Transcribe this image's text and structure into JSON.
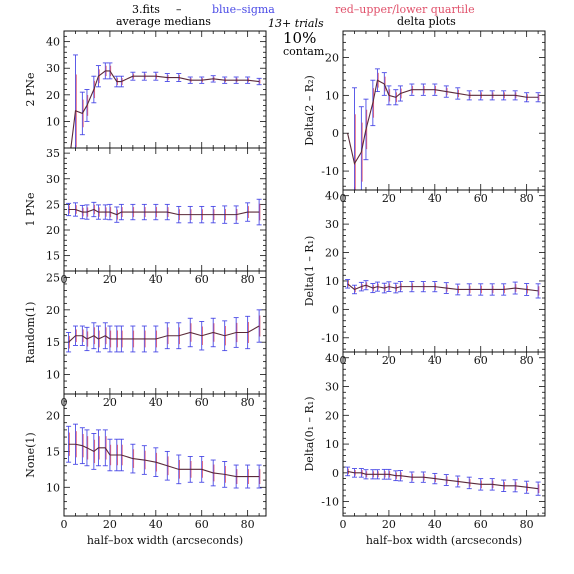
{
  "header": {
    "file_label": "3.fits",
    "dash": "–",
    "legend_sigma": "blue–sigma",
    "legend_quartile": "red–upper/lower quartile",
    "trials": "13+ trials",
    "contam_pct": "10%",
    "contam_word": "contam.",
    "left_column_title": "average medians",
    "right_column_title": "delta plots"
  },
  "colors": {
    "sigma": "#4a4ae6",
    "quartile": "#e0506a",
    "median_line": "#5a2a3a",
    "axes": "#111111"
  },
  "chart_data": [
    {
      "type": "line",
      "ylabel": "2 PNe",
      "xlabel": "",
      "xlim": [
        0,
        88
      ],
      "ylim": [
        0,
        44
      ],
      "xticks": [
        0,
        20,
        40,
        60,
        80
      ],
      "yticks": [
        10,
        20,
        30,
        40
      ],
      "x": [
        3,
        5,
        8,
        10,
        13,
        15,
        18,
        20,
        23,
        25,
        30,
        35,
        40,
        45,
        50,
        55,
        60,
        65,
        70,
        75,
        80,
        85
      ],
      "median": [
        0,
        14,
        13,
        16,
        22,
        27,
        29,
        29,
        25,
        25,
        27,
        27,
        27,
        26.5,
        26.5,
        25.5,
        25.5,
        26,
        25.5,
        25.5,
        25.5,
        25
      ],
      "err": [
        0,
        21,
        8,
        6,
        5,
        4,
        3,
        3,
        2,
        2,
        1.5,
        1.5,
        1.5,
        1.5,
        1.5,
        1.2,
        1.2,
        1.2,
        1.2,
        1.2,
        1.2,
        1.2
      ]
    },
    {
      "type": "line",
      "ylabel": "1 PNe",
      "xlabel": "",
      "xlim": [
        0,
        88
      ],
      "ylim": [
        12,
        36
      ],
      "xticks": [
        0,
        20,
        40,
        60,
        80
      ],
      "xtick_labels": [
        "0",
        "20",
        "40",
        "60",
        "80"
      ],
      "yticks": [
        15,
        20,
        25,
        30,
        35
      ],
      "x": [
        2,
        5,
        8,
        10,
        13,
        15,
        18,
        20,
        23,
        25,
        30,
        35,
        40,
        45,
        50,
        55,
        60,
        65,
        70,
        75,
        80,
        85
      ],
      "median": [
        24,
        24,
        23.5,
        23.5,
        24,
        23.5,
        23.5,
        23.5,
        23,
        23.5,
        23.5,
        23.5,
        23.5,
        23.5,
        23,
        23,
        23,
        23,
        23,
        23,
        23.5,
        23.5
      ],
      "err": [
        1.2,
        1.3,
        1.3,
        1.4,
        1.4,
        1.4,
        1.4,
        1.5,
        1.5,
        1.5,
        1.5,
        1.5,
        1.5,
        1.5,
        1.6,
        1.6,
        1.6,
        1.6,
        1.7,
        1.7,
        1.8,
        2.5
      ]
    },
    {
      "type": "line",
      "ylabel": "Random(1)",
      "xlabel": "",
      "xlim": [
        0,
        88
      ],
      "ylim": [
        7,
        26
      ],
      "xticks": [
        0,
        20,
        40,
        60,
        80
      ],
      "xtick_labels": [
        "0",
        "20",
        "40",
        "60",
        "80"
      ],
      "yticks": [
        10,
        15,
        20,
        25
      ],
      "x": [
        2,
        5,
        8,
        10,
        13,
        15,
        18,
        20,
        23,
        25,
        30,
        35,
        40,
        45,
        50,
        55,
        60,
        65,
        70,
        75,
        80,
        85
      ],
      "median": [
        15,
        16,
        16,
        15.5,
        16,
        15.5,
        16,
        15.5,
        15.5,
        15.5,
        15.5,
        15.5,
        15.5,
        16,
        16,
        16.5,
        16,
        16.5,
        16,
        16.5,
        16.5,
        17.5
      ],
      "err": [
        1.5,
        1.5,
        1.5,
        1.8,
        2,
        2,
        2,
        2,
        2,
        2,
        2,
        2,
        2,
        2,
        2,
        2.2,
        2.2,
        2.2,
        2.3,
        2.3,
        2.5,
        2.5
      ]
    },
    {
      "type": "line",
      "ylabel": "None(1)",
      "xlabel": "half–box width (arcseconds)",
      "xlim": [
        0,
        88
      ],
      "ylim": [
        6,
        23
      ],
      "xticks": [
        0,
        20,
        40,
        60,
        80
      ],
      "xtick_labels": [
        "0",
        "20",
        "40",
        "60",
        "80"
      ],
      "yticks": [
        10,
        15,
        20
      ],
      "x": [
        2,
        5,
        8,
        10,
        13,
        15,
        18,
        20,
        23,
        25,
        30,
        35,
        40,
        45,
        50,
        55,
        60,
        65,
        70,
        75,
        80,
        85
      ],
      "median": [
        16,
        16,
        15.8,
        15.5,
        15,
        15.5,
        15.5,
        14.5,
        14.5,
        14.5,
        14,
        13.8,
        13.5,
        13,
        12.5,
        12.5,
        12.5,
        12,
        11.8,
        11.5,
        11.5,
        11.5
      ],
      "err": [
        2.5,
        2.8,
        2.5,
        2.5,
        2.5,
        2.5,
        2.5,
        2.2,
        2.2,
        2.2,
        2,
        2,
        2,
        2,
        2,
        1.8,
        1.8,
        1.8,
        1.8,
        1.6,
        1.6,
        1.6
      ]
    },
    {
      "type": "line",
      "ylabel": "Delta(2 – R₂)",
      "xlabel": "",
      "xlim": [
        0,
        88
      ],
      "ylim": [
        -15,
        27
      ],
      "xticks": [
        0,
        20,
        40,
        60,
        80
      ],
      "xtick_labels": [
        "0",
        "20",
        "40",
        "60",
        "80"
      ],
      "yticks": [
        -10,
        0,
        10,
        20
      ],
      "x": [
        2,
        5,
        8,
        10,
        13,
        15,
        18,
        20,
        23,
        25,
        30,
        35,
        40,
        45,
        50,
        55,
        60,
        65,
        70,
        75,
        80,
        85
      ],
      "median": [
        0,
        -8,
        -5,
        1,
        8,
        14,
        13,
        10,
        9.5,
        10.5,
        11.5,
        11.5,
        11.5,
        11,
        10.5,
        10,
        10,
        10,
        10,
        10,
        9.5,
        9.5
      ],
      "err": [
        0,
        20,
        12,
        8,
        6,
        3,
        3,
        2.5,
        2,
        2,
        1.5,
        1.5,
        1.5,
        1.5,
        1.5,
        1.2,
        1.2,
        1.2,
        1.2,
        1.2,
        1.2,
        1.2
      ]
    },
    {
      "type": "line",
      "ylabel": "Delta(1 – R₁)",
      "xlabel": "",
      "xlim": [
        0,
        88
      ],
      "ylim": [
        -15,
        42
      ],
      "xticks": [
        0,
        20,
        40,
        60,
        80
      ],
      "xtick_labels": [
        "0",
        "20",
        "40",
        "60",
        "80"
      ],
      "yticks": [
        -10,
        0,
        10,
        20,
        30,
        40
      ],
      "x": [
        2,
        5,
        8,
        10,
        13,
        15,
        18,
        20,
        23,
        25,
        30,
        35,
        40,
        45,
        50,
        55,
        60,
        65,
        70,
        75,
        80,
        85
      ],
      "median": [
        9,
        7,
        8,
        8.5,
        7.5,
        8,
        7.5,
        8,
        7.5,
        8,
        8,
        8,
        8,
        7.5,
        7,
        7,
        7,
        7,
        7,
        7.5,
        7,
        6.5
      ],
      "err": [
        1.5,
        1.5,
        1.5,
        1.6,
        1.6,
        1.6,
        1.7,
        1.7,
        1.7,
        1.8,
        1.8,
        1.8,
        1.8,
        1.9,
        1.9,
        2,
        2,
        2,
        2,
        2.1,
        2.1,
        2.5
      ]
    },
    {
      "type": "line",
      "ylabel": "Delta(0₁ – R₁)",
      "xlabel": "half–box width (arcseconds)",
      "xlim": [
        0,
        88
      ],
      "ylim": [
        -15,
        42
      ],
      "xticks": [
        0,
        20,
        40,
        60,
        80
      ],
      "xtick_labels": [
        "0",
        "20",
        "40",
        "60",
        "80"
      ],
      "yticks": [
        -10,
        0,
        10,
        20,
        30,
        40
      ],
      "x": [
        2,
        5,
        8,
        10,
        13,
        15,
        18,
        20,
        23,
        25,
        30,
        35,
        40,
        45,
        50,
        55,
        60,
        65,
        70,
        75,
        80,
        85
      ],
      "median": [
        0.5,
        0,
        0,
        -0.5,
        -0.5,
        -0.5,
        -0.5,
        -0.5,
        -1,
        -1,
        -1.5,
        -1.5,
        -2,
        -2.5,
        -3,
        -3.5,
        -4,
        -4,
        -4.5,
        -4.5,
        -5,
        -5.5
      ],
      "err": [
        1.5,
        1.5,
        1.5,
        1.6,
        1.6,
        1.6,
        1.7,
        1.7,
        1.7,
        1.8,
        1.8,
        1.8,
        1.8,
        1.9,
        1.9,
        2,
        2,
        2,
        2,
        2.1,
        2.1,
        2.3
      ]
    }
  ]
}
